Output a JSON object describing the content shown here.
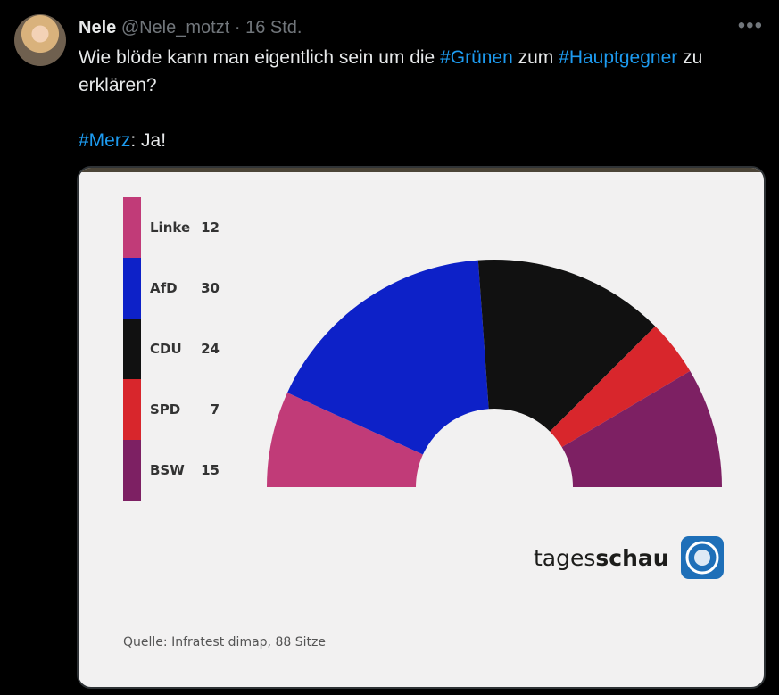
{
  "tweet": {
    "author_name": "Nele",
    "handle": "@Nele_motzt",
    "separator": "·",
    "time": "16 Std.",
    "more_icon": "more-dots-icon",
    "text": {
      "line1_prefix": "Wie blöde kann man eigentlich sein um die ",
      "hashtag_gruenen": "#Grünen",
      "line1_mid": " zum ",
      "hashtag_hauptgegner": "#Hauptgegner",
      "line1_suffix": " zu",
      "line2": "erklären?",
      "hashtag_merz": "#Merz",
      "line3_suffix": ": Ja!"
    }
  },
  "chart_data": {
    "type": "pie",
    "variant": "semicircle-parliament",
    "categories": [
      "Linke",
      "AfD",
      "CDU",
      "SPD",
      "BSW"
    ],
    "values": [
      12,
      30,
      24,
      7,
      15
    ],
    "colors": [
      "#c13b78",
      "#0d21c8",
      "#111111",
      "#d8262c",
      "#7d2063"
    ],
    "brand_name_light": "tages",
    "brand_name_bold": "schau",
    "source": "Quelle: Infratest dimap, 88 Sitze"
  }
}
